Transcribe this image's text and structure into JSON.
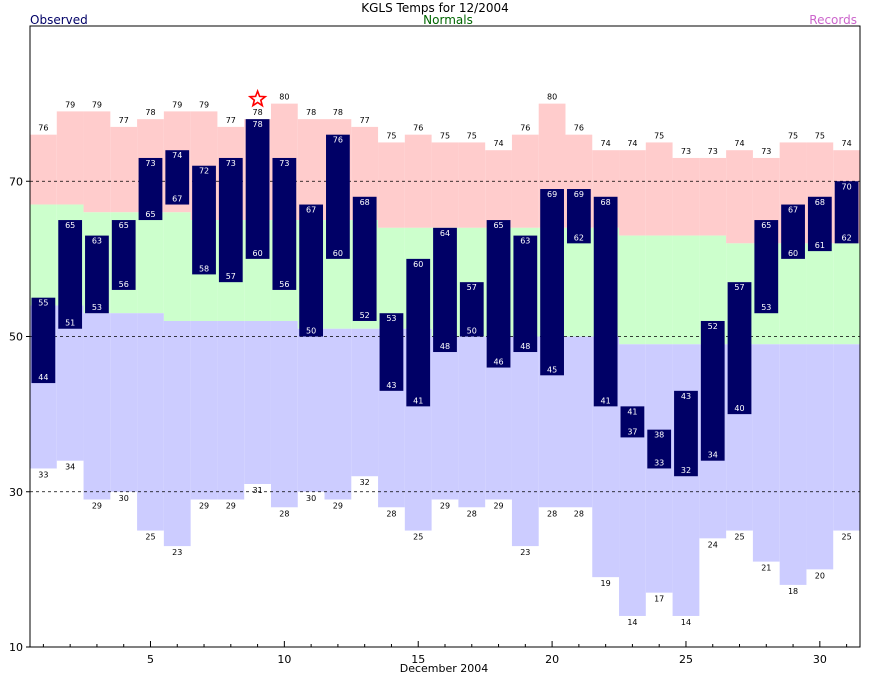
{
  "chart_data": {
    "type": "bar",
    "title": "KGLS Temps for 12/2004",
    "xlabel": "December 2004",
    "ylabel": "",
    "legend": {
      "observed": "Observed",
      "normals": "Normals",
      "records": "Records"
    },
    "ylim": [
      10,
      90
    ],
    "yticks": [
      10,
      30,
      50,
      70
    ],
    "xlim": [
      0.5,
      31.5
    ],
    "xticks": [
      5,
      10,
      15,
      20,
      25,
      30
    ],
    "gridlines_y": [
      30,
      50,
      70
    ],
    "days": [
      1,
      2,
      3,
      4,
      5,
      6,
      7,
      8,
      9,
      10,
      11,
      12,
      13,
      14,
      15,
      16,
      17,
      18,
      19,
      20,
      21,
      22,
      23,
      24,
      25,
      26,
      27,
      28,
      29,
      30,
      31
    ],
    "series": [
      {
        "name": "Observed",
        "high": [
          55,
          65,
          63,
          65,
          73,
          74,
          72,
          73,
          78,
          73,
          67,
          76,
          68,
          53,
          60,
          64,
          57,
          65,
          63,
          69,
          69,
          68,
          41,
          38,
          43,
          52,
          57,
          65,
          67,
          68,
          70
        ],
        "low": [
          44,
          51,
          53,
          56,
          65,
          67,
          58,
          57,
          60,
          56,
          50,
          60,
          52,
          43,
          41,
          48,
          50,
          46,
          48,
          45,
          62,
          41,
          37,
          33,
          32,
          34,
          40,
          53,
          60,
          61,
          62
        ]
      },
      {
        "name": "Normals",
        "high": [
          67,
          67,
          66,
          66,
          66,
          66,
          65,
          65,
          65,
          65,
          65,
          65,
          65,
          64,
          64,
          64,
          64,
          64,
          64,
          64,
          64,
          64,
          63,
          63,
          63,
          63,
          62,
          62,
          62,
          62,
          62
        ],
        "low": [
          54,
          54,
          53,
          53,
          53,
          52,
          52,
          52,
          52,
          52,
          51,
          51,
          51,
          51,
          51,
          50,
          50,
          50,
          50,
          50,
          50,
          50,
          49,
          49,
          49,
          49,
          49,
          49,
          49,
          49,
          49
        ]
      },
      {
        "name": "Records",
        "high": [
          76,
          79,
          79,
          77,
          78,
          79,
          79,
          77,
          78,
          80,
          78,
          78,
          77,
          75,
          76,
          75,
          75,
          74,
          76,
          80,
          76,
          74,
          74,
          75,
          73,
          73,
          74,
          73,
          75,
          75,
          74
        ],
        "low": [
          33,
          34,
          29,
          30,
          25,
          23,
          29,
          29,
          31,
          28,
          30,
          29,
          32,
          28,
          25,
          29,
          28,
          29,
          23,
          28,
          28,
          19,
          14,
          17,
          14,
          24,
          25,
          21,
          18,
          20,
          25
        ]
      }
    ],
    "record_set_marker": {
      "day": 9,
      "series": "Records high"
    },
    "colors": {
      "record_high_band": "#ffcccc",
      "normal_band": "#ccffcc",
      "record_low_band": "#ccccff",
      "observed_bar": "#000066",
      "observed_label": "#000066",
      "normals_label": "#006600",
      "records_label": "#cc66cc",
      "marker": "#ff0000"
    }
  }
}
